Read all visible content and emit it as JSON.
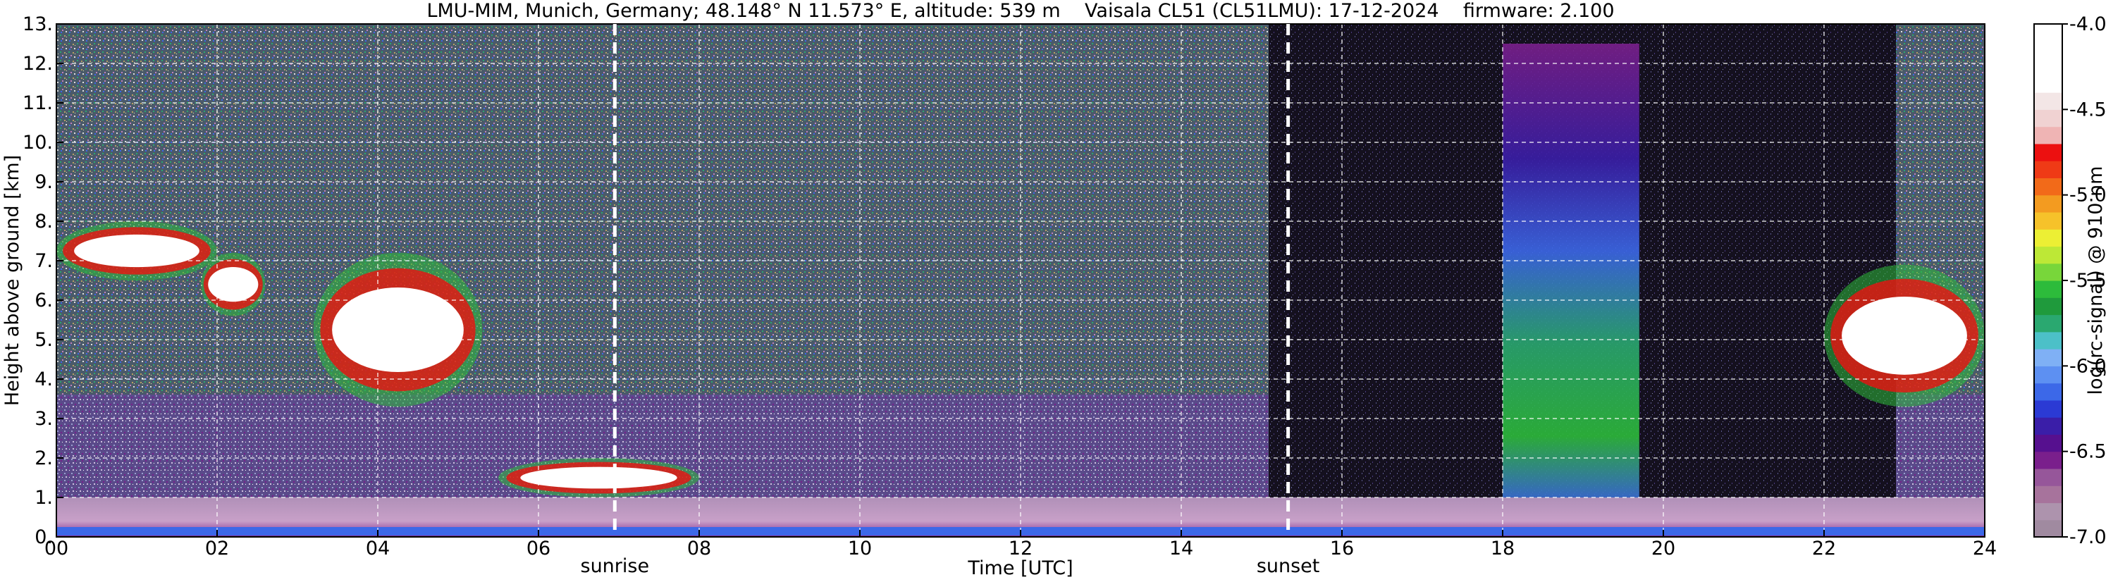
{
  "chart_data": {
    "type": "heatmap",
    "title": "LMU-MIM, Munich, Germany; 48.148° N 11.573° E, altitude: 539 m    Vaisala CL51 (CL51LMU): 17-12-2024    firmware: 2.100",
    "xlabel": "Time [UTC]",
    "ylabel": "Height above ground [km]",
    "xlim": [
      0,
      24
    ],
    "ylim": [
      0,
      13
    ],
    "x_ticks": [
      0,
      2,
      4,
      6,
      8,
      10,
      12,
      14,
      16,
      18,
      20,
      22,
      24
    ],
    "x_tick_labels": [
      "00",
      "02",
      "04",
      "06",
      "08",
      "10",
      "12",
      "14",
      "16",
      "18",
      "20",
      "22",
      "24"
    ],
    "y_ticks": [
      0,
      1,
      2,
      3,
      4,
      5,
      6,
      7,
      8,
      9,
      10,
      11,
      12,
      13
    ],
    "y_tick_labels": [
      "0.",
      "1.",
      "2.",
      "3.",
      "4.",
      "5.",
      "6.",
      "7.",
      "8.",
      "9.",
      "10.",
      "11.",
      "12.",
      "13."
    ],
    "grid": true,
    "markers": [
      {
        "label": "sunrise",
        "x": 6.95
      },
      {
        "label": "sunset",
        "x": 15.33
      }
    ],
    "colorbar": {
      "label": "log(rc-signal) @ 910 nm",
      "range": [
        -7.0,
        -4.0
      ],
      "ticks": [
        -7.0,
        -6.5,
        -6.0,
        -5.5,
        -5.0,
        -4.5,
        -4.0
      ],
      "tick_labels": [
        "-7.0",
        "-6.5",
        "-6.0",
        "-5.5",
        "-5.0",
        "-4.5",
        "-4.0"
      ],
      "colors": [
        "#a08aa0",
        "#ad93ad",
        "#a7739c",
        "#96569a",
        "#7a1f8c",
        "#56108f",
        "#3a1ea8",
        "#2b3ad4",
        "#3c68e8",
        "#5d90f2",
        "#7fb0f5",
        "#4cc0c8",
        "#2aa870",
        "#1f9a3c",
        "#2dbb3b",
        "#78d63a",
        "#bde836",
        "#ecef34",
        "#f6c22a",
        "#f39b20",
        "#f26a19",
        "#ef3a16",
        "#ec1010",
        "#efb4b4",
        "#f0d2d2",
        "#f3e6e6",
        "#ffffff",
        "#ffffff",
        "#ffffff",
        "#ffffff"
      ]
    },
    "features": [
      {
        "kind": "cloud",
        "x": [
          0.0,
          2.0
        ],
        "y": [
          6.5,
          8.0
        ]
      },
      {
        "kind": "cloud",
        "x": [
          1.8,
          2.6
        ],
        "y": [
          5.6,
          7.2
        ]
      },
      {
        "kind": "cloud",
        "x": [
          3.2,
          5.3
        ],
        "y": [
          3.3,
          7.2
        ]
      },
      {
        "kind": "cloud",
        "x": [
          5.5,
          8.0
        ],
        "y": [
          1.0,
          2.0
        ]
      },
      {
        "kind": "cloud",
        "x": [
          22.0,
          24.0
        ],
        "y": [
          3.3,
          6.9
        ]
      },
      {
        "kind": "aerosol",
        "x": [
          18.0,
          19.7
        ],
        "y": [
          0.8,
          12.5
        ]
      },
      {
        "kind": "boundary-layer",
        "x": [
          0.0,
          24.0
        ],
        "y": [
          0.0,
          1.0
        ]
      }
    ]
  }
}
